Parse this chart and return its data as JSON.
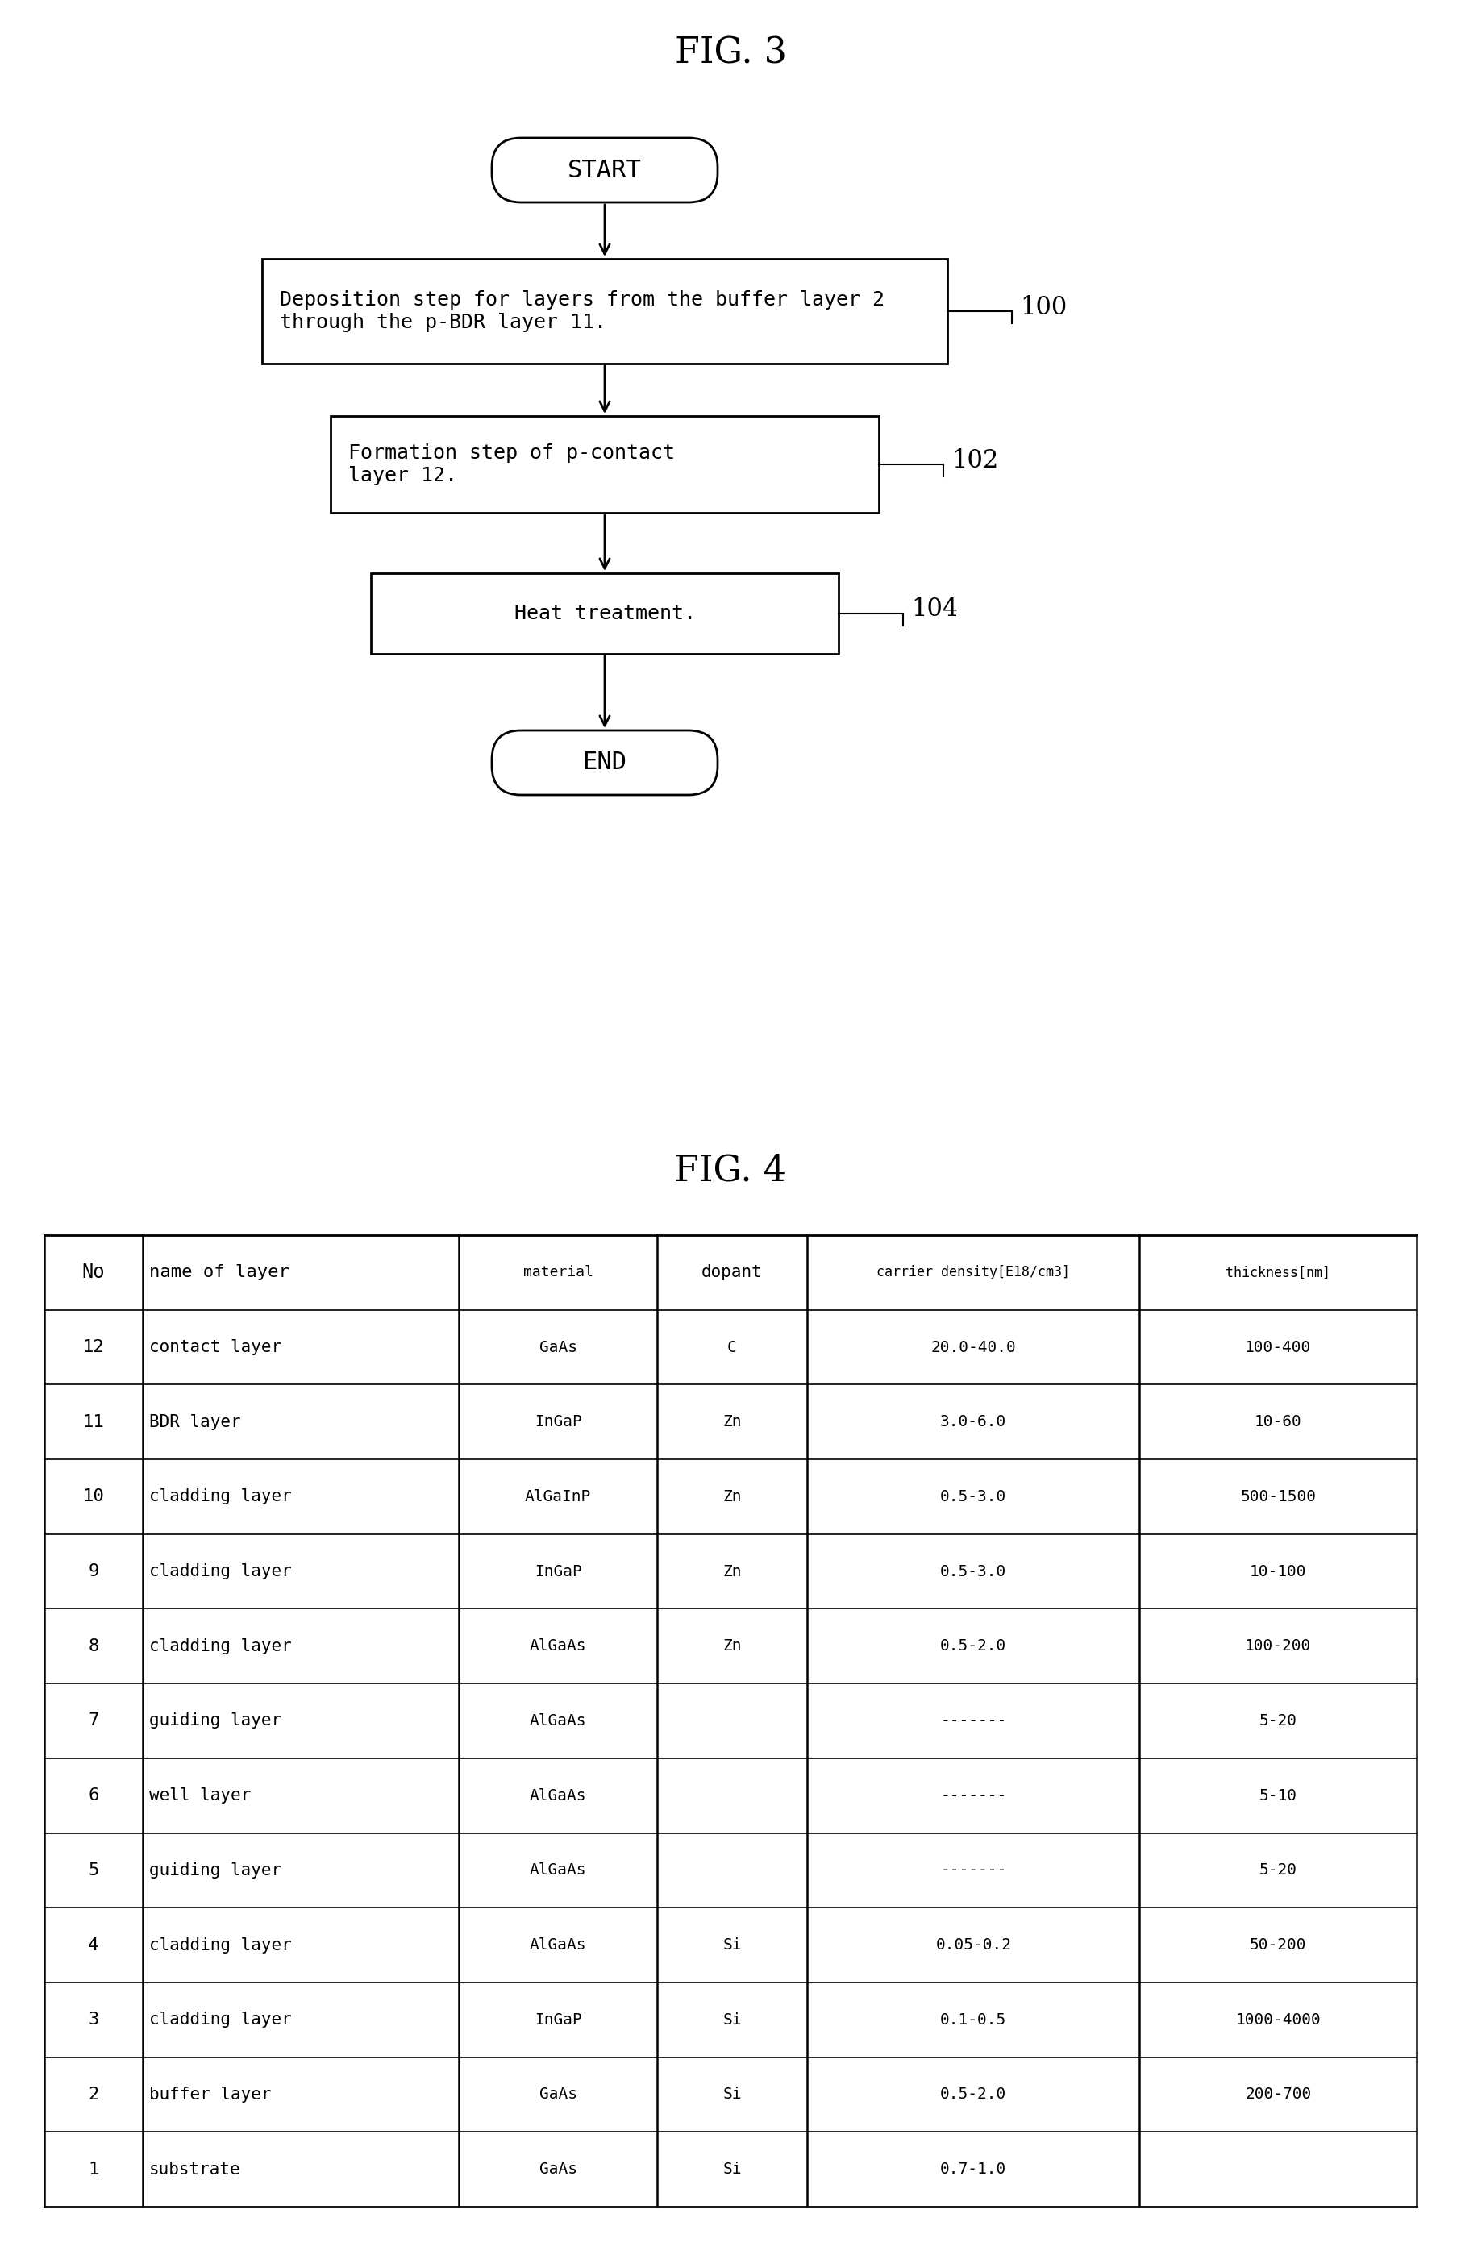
{
  "fig3_title": "FIG. 3",
  "fig4_title": "FIG. 4",
  "background_color": "#ffffff",
  "flowchart": {
    "start_text": "START",
    "end_text": "END",
    "box100_lines": [
      "Deposition step for layers from the buffer layer 2",
      "through the p-BDR layer 11."
    ],
    "box102_lines": [
      "Formation step of p-contact",
      "layer 12."
    ],
    "box104_text": "Heat treatment.",
    "label100": "100",
    "label102": "102",
    "label104": "104"
  },
  "table": {
    "headers": [
      "No",
      "name of layer",
      "material",
      "dopant",
      "carrier density[E18/cm3]",
      "thickness[nm]"
    ],
    "rows": [
      [
        "12",
        "contact layer",
        "GaAs",
        "C",
        "20.0-40.0",
        "100-400"
      ],
      [
        "11",
        "BDR layer",
        "InGaP",
        "Zn",
        "3.0-6.0",
        "10-60"
      ],
      [
        "10",
        "cladding layer",
        "AlGaInP",
        "Zn",
        "0.5-3.0",
        "500-1500"
      ],
      [
        "9",
        "cladding layer",
        "InGaP",
        "Zn",
        "0.5-3.0",
        "10-100"
      ],
      [
        "8",
        "cladding layer",
        "AlGaAs",
        "Zn",
        "0.5-2.0",
        "100-200"
      ],
      [
        "7",
        "guiding layer",
        "AlGaAs",
        "",
        "-------",
        "5-20"
      ],
      [
        "6",
        "well layer",
        "AlGaAs",
        "",
        "-------",
        "5-10"
      ],
      [
        "5",
        "guiding layer",
        "AlGaAs",
        "",
        "-------",
        "5-20"
      ],
      [
        "4",
        "cladding layer",
        "AlGaAs",
        "Si",
        "0.05-0.2",
        "50-200"
      ],
      [
        "3",
        "cladding layer",
        "InGaP",
        "Si",
        "0.1-0.5",
        "1000-4000"
      ],
      [
        "2",
        "buffer layer",
        "GaAs",
        "Si",
        "0.5-2.0",
        "200-700"
      ],
      [
        "1",
        "substrate",
        "GaAs",
        "Si",
        "0.7-1.0",
        ""
      ]
    ]
  }
}
